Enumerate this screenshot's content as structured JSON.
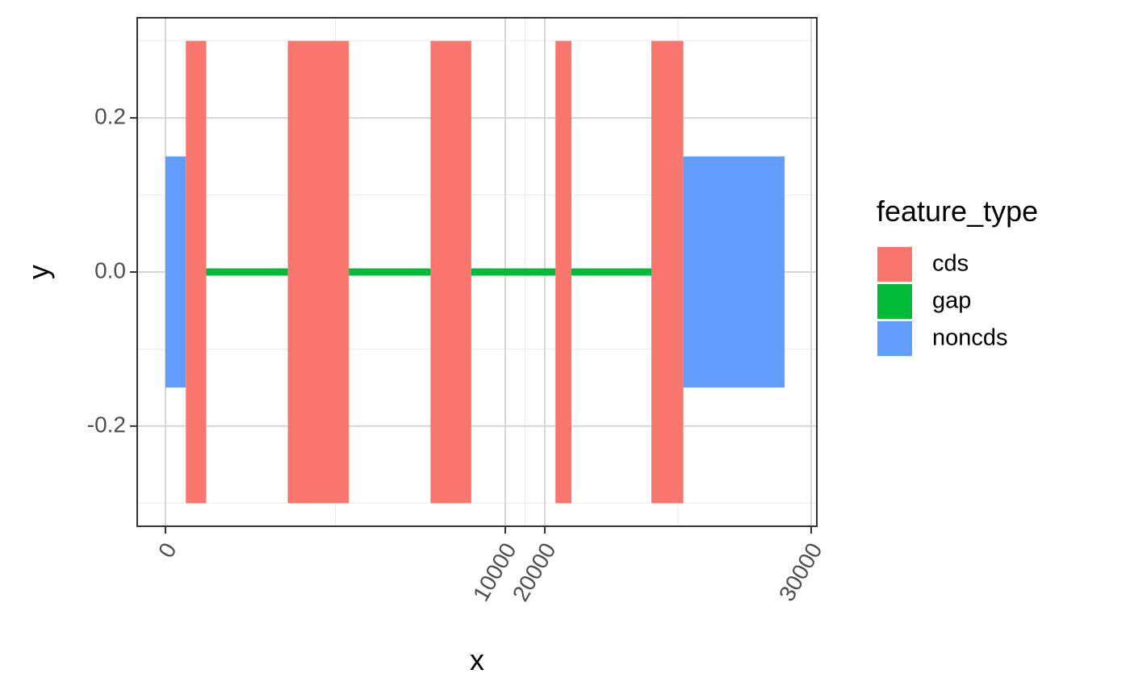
{
  "chart_data": {
    "type": "bar",
    "xlabel": "x",
    "ylabel": "y",
    "ylim": [
      -0.33,
      0.33
    ],
    "x_ticks": [
      {
        "value": 0,
        "label": "0"
      },
      {
        "value": 10000,
        "label": "10000"
      },
      {
        "value": 20000,
        "label": "20000"
      },
      {
        "value": 30000,
        "label": "30000"
      }
    ],
    "y_ticks": [
      {
        "value": 0.2,
        "label": "0.2"
      },
      {
        "value": 0.0,
        "label": "0.0"
      },
      {
        "value": -0.2,
        "label": "-0.2"
      }
    ],
    "x_tick_rotation": "-60deg",
    "grid": true,
    "legend": {
      "title": "feature_type",
      "placement": "right",
      "entries": [
        {
          "name": "cds",
          "color": "#F8766D"
        },
        {
          "name": "gap",
          "color": "#00BA38"
        },
        {
          "name": "noncds",
          "color": "#619CFF"
        }
      ]
    },
    "colors": {
      "cds": "#F8766D",
      "gap": "#00BA38",
      "noncds": "#619CFF"
    },
    "features": [
      {
        "feature_type": "noncds",
        "xmin": 0,
        "xmax": 600,
        "ymin": -0.15,
        "ymax": 0.15
      },
      {
        "feature_type": "cds",
        "xmin": 600,
        "xmax": 1200,
        "ymin": -0.3,
        "ymax": 0.3
      },
      {
        "feature_type": "gap",
        "xmin": 1200,
        "xmax": 3600,
        "ymin": 0,
        "ymax": 0
      },
      {
        "feature_type": "cds",
        "xmin": 3600,
        "xmax": 5400,
        "ymin": -0.3,
        "ymax": 0.3
      },
      {
        "feature_type": "gap",
        "xmin": 5400,
        "xmax": 7800,
        "ymin": 0,
        "ymax": 0
      },
      {
        "feature_type": "cds",
        "xmin": 7800,
        "xmax": 9000,
        "ymin": -0.3,
        "ymax": 0.3
      },
      {
        "feature_type": "gap",
        "xmin": 9000,
        "xmax": 20400,
        "ymin": 0,
        "ymax": 0
      },
      {
        "feature_type": "cds",
        "xmin": 20400,
        "xmax": 21000,
        "ymin": -0.3,
        "ymax": 0.3
      },
      {
        "feature_type": "gap",
        "xmin": 21000,
        "xmax": 24000,
        "ymin": 0,
        "ymax": 0
      },
      {
        "feature_type": "cds",
        "xmin": 24000,
        "xmax": 25200,
        "ymin": -0.3,
        "ymax": 0.3
      },
      {
        "feature_type": "noncds",
        "xmin": 25200,
        "xmax": 29000,
        "ymin": -0.15,
        "ymax": 0.15
      }
    ]
  }
}
